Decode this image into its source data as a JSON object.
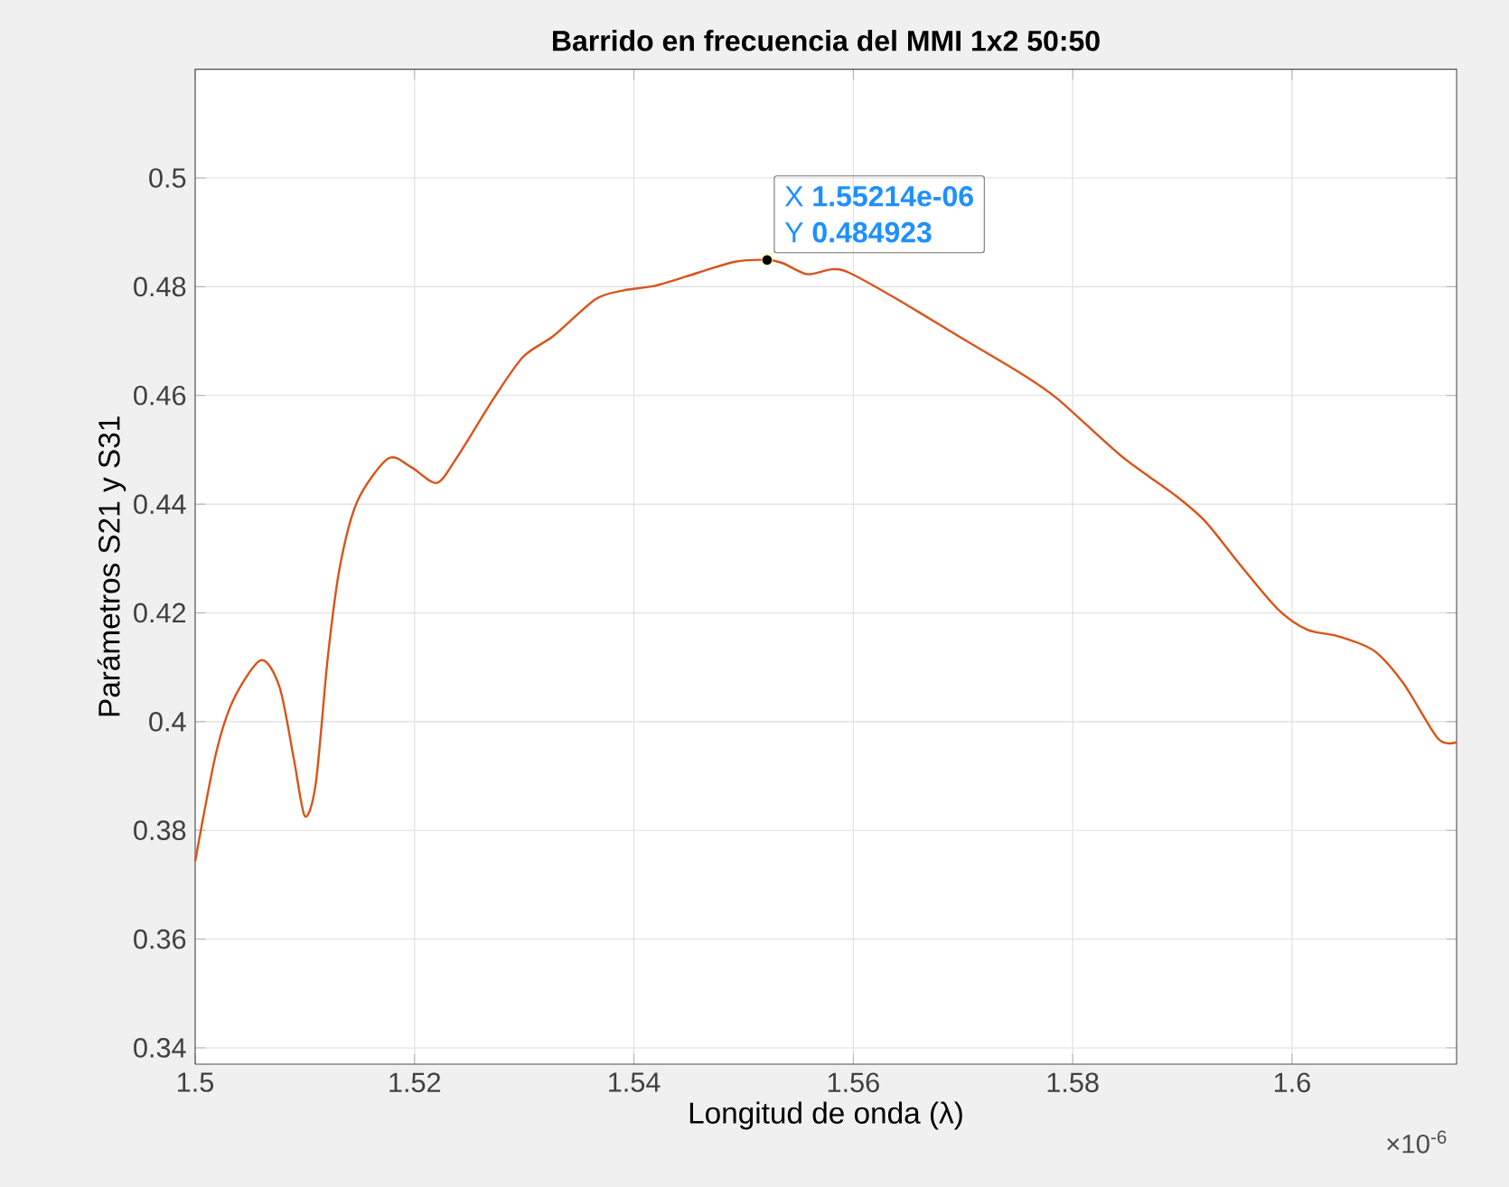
{
  "chart_data": {
    "type": "line",
    "title": "Barrido en frecuencia del MMI 1x2 50:50",
    "xlabel": "Longitud de onda (λ)",
    "ylabel": "Parámetros S21 y S31",
    "x": [
      1.5,
      1.5019,
      1.5035,
      1.506,
      1.5077,
      1.509,
      1.51,
      1.511,
      1.5121,
      1.5132,
      1.5148,
      1.5176,
      1.5197,
      1.522,
      1.5238,
      1.5272,
      1.5299,
      1.5327,
      1.5365,
      1.539,
      1.542,
      1.5459,
      1.5492,
      1.55214,
      1.5536,
      1.5558,
      1.558,
      1.5596,
      1.564,
      1.5695,
      1.575,
      1.5786,
      1.5844,
      1.5893,
      1.5921,
      1.5954,
      1.5987,
      1.6014,
      1.6042,
      1.6075,
      1.6102,
      1.6133,
      1.615
    ],
    "values": [
      0.3743,
      0.3942,
      0.4041,
      0.4113,
      0.4063,
      0.3931,
      0.3826,
      0.3887,
      0.412,
      0.4286,
      0.4406,
      0.4484,
      0.4468,
      0.4439,
      0.4484,
      0.4594,
      0.4671,
      0.471,
      0.4777,
      0.4793,
      0.4802,
      0.4826,
      0.4846,
      0.484923,
      0.4843,
      0.4823,
      0.4832,
      0.4826,
      0.4777,
      0.471,
      0.4644,
      0.4594,
      0.4489,
      0.4417,
      0.4368,
      0.4285,
      0.4207,
      0.4169,
      0.4157,
      0.413,
      0.4069,
      0.3969,
      0.3962
    ],
    "color": "#d95319",
    "xlim": [
      1.5,
      1.615
    ],
    "ylim": [
      0.337,
      0.52
    ],
    "xticks": [
      1.5,
      1.52,
      1.54,
      1.56,
      1.58,
      1.6
    ],
    "yticks": [
      0.34,
      0.36,
      0.38,
      0.4,
      0.42,
      0.44,
      0.46,
      0.48,
      0.5
    ],
    "grid": true,
    "annotations": [
      "×10$^{-6}$",
      {
        "text": "X **1.55214e-06**",
        "x": 1.55214,
        "y": 0.484923
      },
      {
        "text": "Y **0.484923**",
        "x": 1.55214,
        "y": 0.484923
      }
    ]
  }
}
